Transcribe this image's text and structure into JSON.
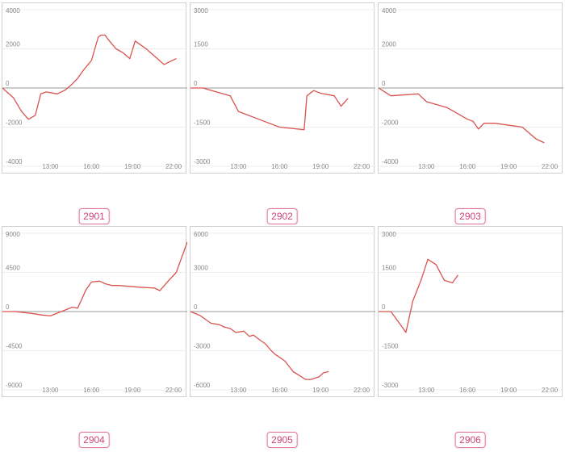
{
  "colors": {
    "series": "#d9534f",
    "grid": "#ececec",
    "zero": "#9a9a9a",
    "tick": "#888888",
    "badge": "#d0457a"
  },
  "chart_data": [
    {
      "type": "line",
      "label": "2901",
      "ylim": [
        -4000,
        4000
      ],
      "yticks": [
        4000,
        2000,
        0,
        -2000,
        -4000
      ],
      "xlim": [
        9.5,
        23.0
      ],
      "xticks": [
        "13:00",
        "16:00",
        "19:00",
        "22:00"
      ],
      "xtick_values": [
        13,
        16,
        19,
        22
      ],
      "x": [
        9.5,
        10.3,
        10.9,
        11.4,
        11.9,
        12.3,
        12.7,
        13.5,
        14.1,
        14.6,
        15.0,
        15.4,
        16.0,
        16.5,
        16.7,
        17.0,
        17.2,
        17.8,
        18.3,
        18.8,
        19.2,
        19.6,
        20.0,
        21.3,
        22.2
      ],
      "y": [
        0,
        -500,
        -1200,
        -1600,
        -1400,
        -300,
        -200,
        -300,
        -100,
        200,
        500,
        900,
        1400,
        2600,
        2700,
        2700,
        2500,
        2000,
        1800,
        1500,
        2400,
        2200,
        2000,
        1200,
        1500
      ]
    },
    {
      "type": "line",
      "label": "2902",
      "ylim": [
        -3000,
        3000
      ],
      "yticks": [
        3000,
        1500,
        0,
        -1500,
        -3000
      ],
      "xlim": [
        9.5,
        23.0
      ],
      "xticks": [
        "13:00",
        "16:00",
        "19:00",
        "22:00"
      ],
      "xtick_values": [
        13,
        16,
        19,
        22
      ],
      "x": [
        9.5,
        10.4,
        12.4,
        13.0,
        14.5,
        16.0,
        17.8,
        18.0,
        18.5,
        19.0,
        20.0,
        20.5,
        21.0
      ],
      "y": [
        0,
        0,
        -300,
        -900,
        -1200,
        -1500,
        -1600,
        -300,
        -100,
        -200,
        -300,
        -700,
        -400
      ]
    },
    {
      "type": "line",
      "label": "2903",
      "ylim": [
        -4000,
        4000
      ],
      "yticks": [
        4000,
        2000,
        0,
        -2000,
        -4000
      ],
      "xlim": [
        9.5,
        23.0
      ],
      "xticks": [
        "13:00",
        "16:00",
        "19:00",
        "22:00"
      ],
      "xtick_values": [
        13,
        16,
        19,
        22
      ],
      "x": [
        9.5,
        10.4,
        12.4,
        13.0,
        14.5,
        15.0,
        16.0,
        16.4,
        16.8,
        17.2,
        18.0,
        20.0,
        21.0,
        21.6
      ],
      "y": [
        0,
        -400,
        -300,
        -700,
        -1000,
        -1200,
        -1600,
        -1700,
        -2100,
        -1800,
        -1800,
        -2000,
        -2600,
        -2800
      ]
    },
    {
      "type": "line",
      "label": "2904",
      "ylim": [
        -9000,
        9000
      ],
      "yticks": [
        9000,
        4500,
        0,
        -4500,
        -9000
      ],
      "xlim": [
        9.5,
        23.0
      ],
      "xticks": [
        "13:00",
        "16:00",
        "19:00",
        "22:00"
      ],
      "xtick_values": [
        13,
        16,
        19,
        22
      ],
      "x": [
        9.5,
        10.4,
        11.6,
        12.4,
        13.0,
        13.8,
        14.6,
        15.0,
        15.6,
        16.0,
        16.6,
        17.0,
        17.5,
        18.0,
        19.5,
        20.6,
        21.0,
        21.6,
        22.2,
        23.0
      ],
      "y": [
        0,
        0,
        -200,
        -400,
        -500,
        0,
        500,
        400,
        2500,
        3400,
        3500,
        3200,
        3000,
        3000,
        2800,
        2700,
        2400,
        3500,
        4500,
        8000
      ]
    },
    {
      "type": "line",
      "label": "2905",
      "ylim": [
        -6000,
        6000
      ],
      "yticks": [
        6000,
        3000,
        0,
        -3000,
        -6000
      ],
      "xlim": [
        9.5,
        23.0
      ],
      "xticks": [
        "13:00",
        "16:00",
        "19:00",
        "22:00"
      ],
      "xtick_values": [
        13,
        16,
        19,
        22
      ],
      "x": [
        9.5,
        10.2,
        11.0,
        11.6,
        12.0,
        12.4,
        12.8,
        13.4,
        13.8,
        14.1,
        14.6,
        15.0,
        15.4,
        15.7,
        16.0,
        16.4,
        16.7,
        17.0,
        17.3,
        17.6,
        17.9,
        18.3,
        18.6,
        18.9,
        19.2,
        19.6
      ],
      "y": [
        0,
        -300,
        -900,
        -1000,
        -1200,
        -1300,
        -1600,
        -1500,
        -1900,
        -1800,
        -2200,
        -2500,
        -3000,
        -3300,
        -3500,
        -3800,
        -4200,
        -4600,
        -4800,
        -5000,
        -5200,
        -5200,
        -5100,
        -5000,
        -4700,
        -4600
      ]
    },
    {
      "type": "line",
      "label": "2906",
      "ylim": [
        -3000,
        3000
      ],
      "yticks": [
        3000,
        1500,
        0,
        -1500,
        -3000
      ],
      "xlim": [
        9.5,
        23.0
      ],
      "xticks": [
        "13:00",
        "16:00",
        "19:00",
        "22:00"
      ],
      "xtick_values": [
        13,
        16,
        19,
        22
      ],
      "x": [
        9.5,
        10.4,
        11.1,
        11.5,
        12.0,
        12.6,
        13.1,
        13.7,
        14.3,
        14.9,
        15.3
      ],
      "y": [
        0,
        0,
        -500,
        -800,
        400,
        1200,
        2000,
        1800,
        1200,
        1100,
        1400
      ]
    }
  ]
}
